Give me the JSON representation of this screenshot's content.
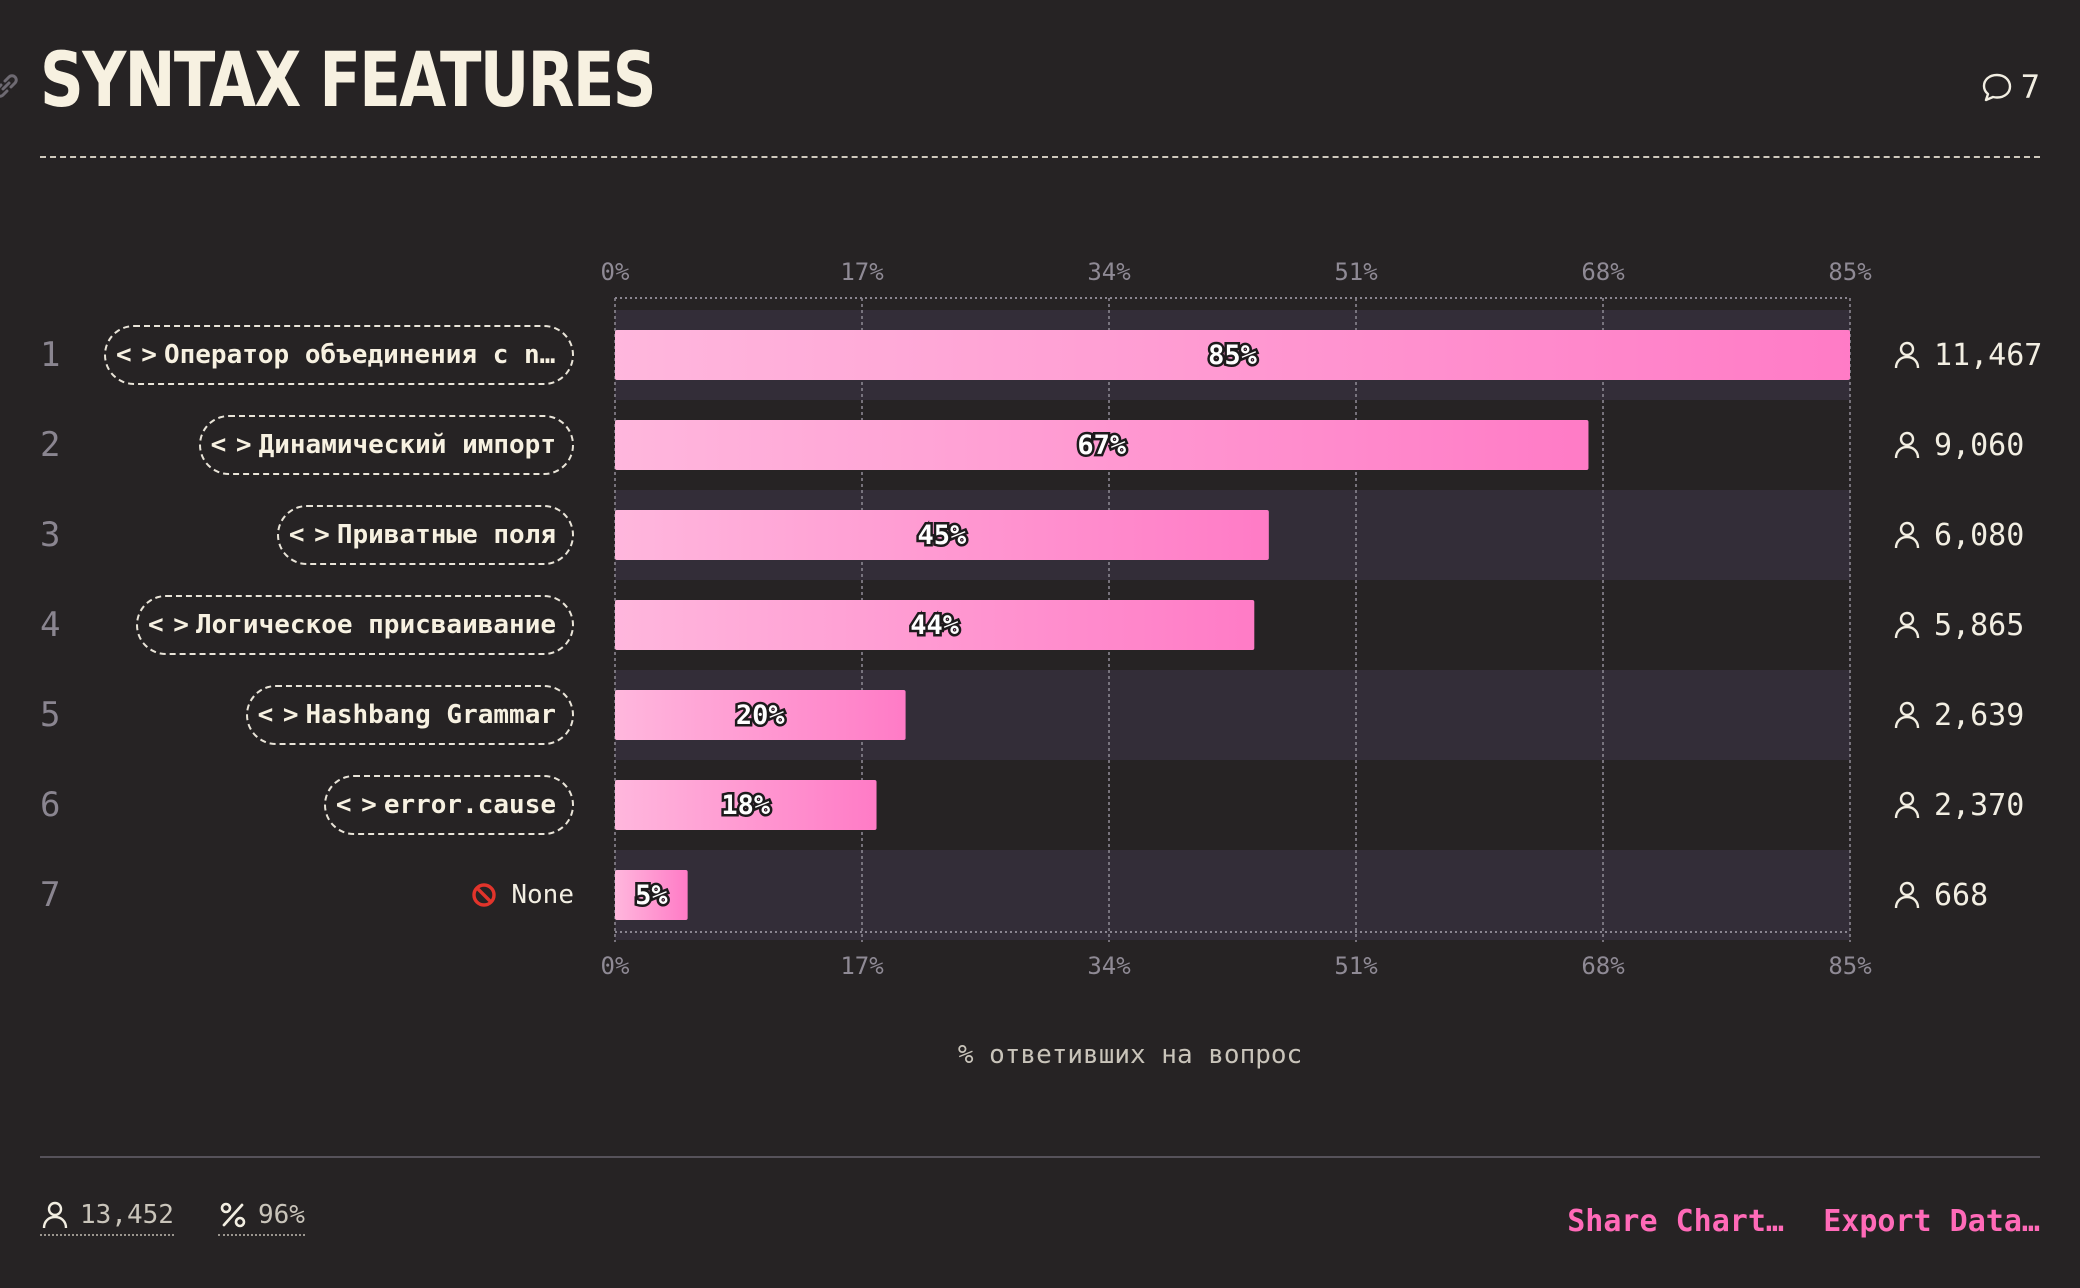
{
  "header": {
    "title": "SYNTAX FEATURES",
    "comment_count": "7"
  },
  "chart_data": {
    "type": "bar",
    "orientation": "horizontal",
    "categories": [
      "Оператор объединения с nu…",
      "Динамический импорт",
      "Приватные поля",
      "Логическое присваивание",
      "Hashbang Grammar",
      "error.cause",
      "None"
    ],
    "values": [
      85,
      67,
      45,
      44,
      20,
      18,
      5
    ],
    "value_labels": [
      "85%",
      "67%",
      "45%",
      "44%",
      "20%",
      "18%",
      "5%"
    ],
    "ranks": [
      "1",
      "2",
      "3",
      "4",
      "5",
      "6",
      "7"
    ],
    "respondents": [
      "11,467",
      "9,060",
      "6,080",
      "5,865",
      "2,639",
      "2,370",
      "668"
    ],
    "xticks": [
      "0%",
      "17%",
      "34%",
      "51%",
      "68%",
      "85%"
    ],
    "xlim": [
      0,
      85
    ],
    "xlabel": "% ответивших на вопрос",
    "grid": true,
    "colors": {
      "bar_start": "#ffb7dd",
      "bar_end": "#ff7bc6",
      "track": "#332d38"
    }
  },
  "footer": {
    "total_respondents": "13,452",
    "completion": "96%",
    "share_label": "Share Chart…",
    "export_label": "Export Data…"
  }
}
